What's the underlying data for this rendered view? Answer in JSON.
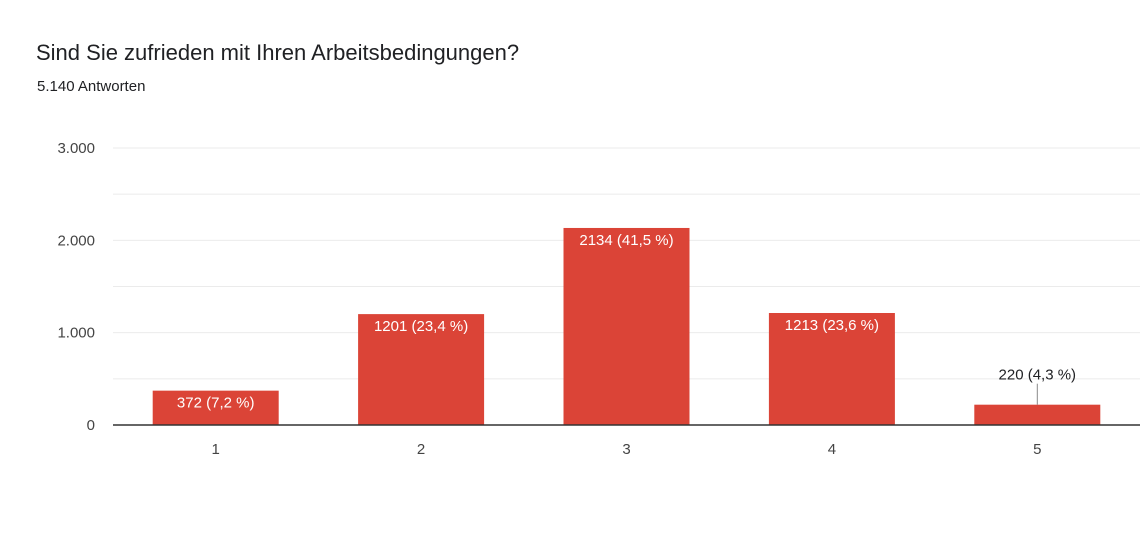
{
  "header": {
    "question": "Sind Sie zufrieden mit Ihren Arbeitsbedingungen?",
    "response_count": "5.140 Antworten"
  },
  "chart_data": {
    "type": "bar",
    "categories": [
      "1",
      "2",
      "3",
      "4",
      "5"
    ],
    "values": [
      372,
      1201,
      2134,
      1213,
      220
    ],
    "data_labels": [
      "372 (7,2 %)",
      "1201 (23,4 %)",
      "2134 (41,5 %)",
      "1213 (23,6 %)",
      "220 (4,3 %)"
    ],
    "ylim": [
      0,
      3000
    ],
    "y_ticks": [
      0,
      1000,
      2000,
      3000
    ],
    "y_tick_labels": [
      "0",
      "1.000",
      "2.000",
      "3.000"
    ],
    "minor_grid": [
      500,
      1500,
      2500
    ],
    "grid": true,
    "colors": {
      "bar": "#db4437",
      "label_inside": "#ffffff",
      "label_outside": "#202124",
      "grid": "#ebebeb",
      "axis": "#333333"
    }
  }
}
